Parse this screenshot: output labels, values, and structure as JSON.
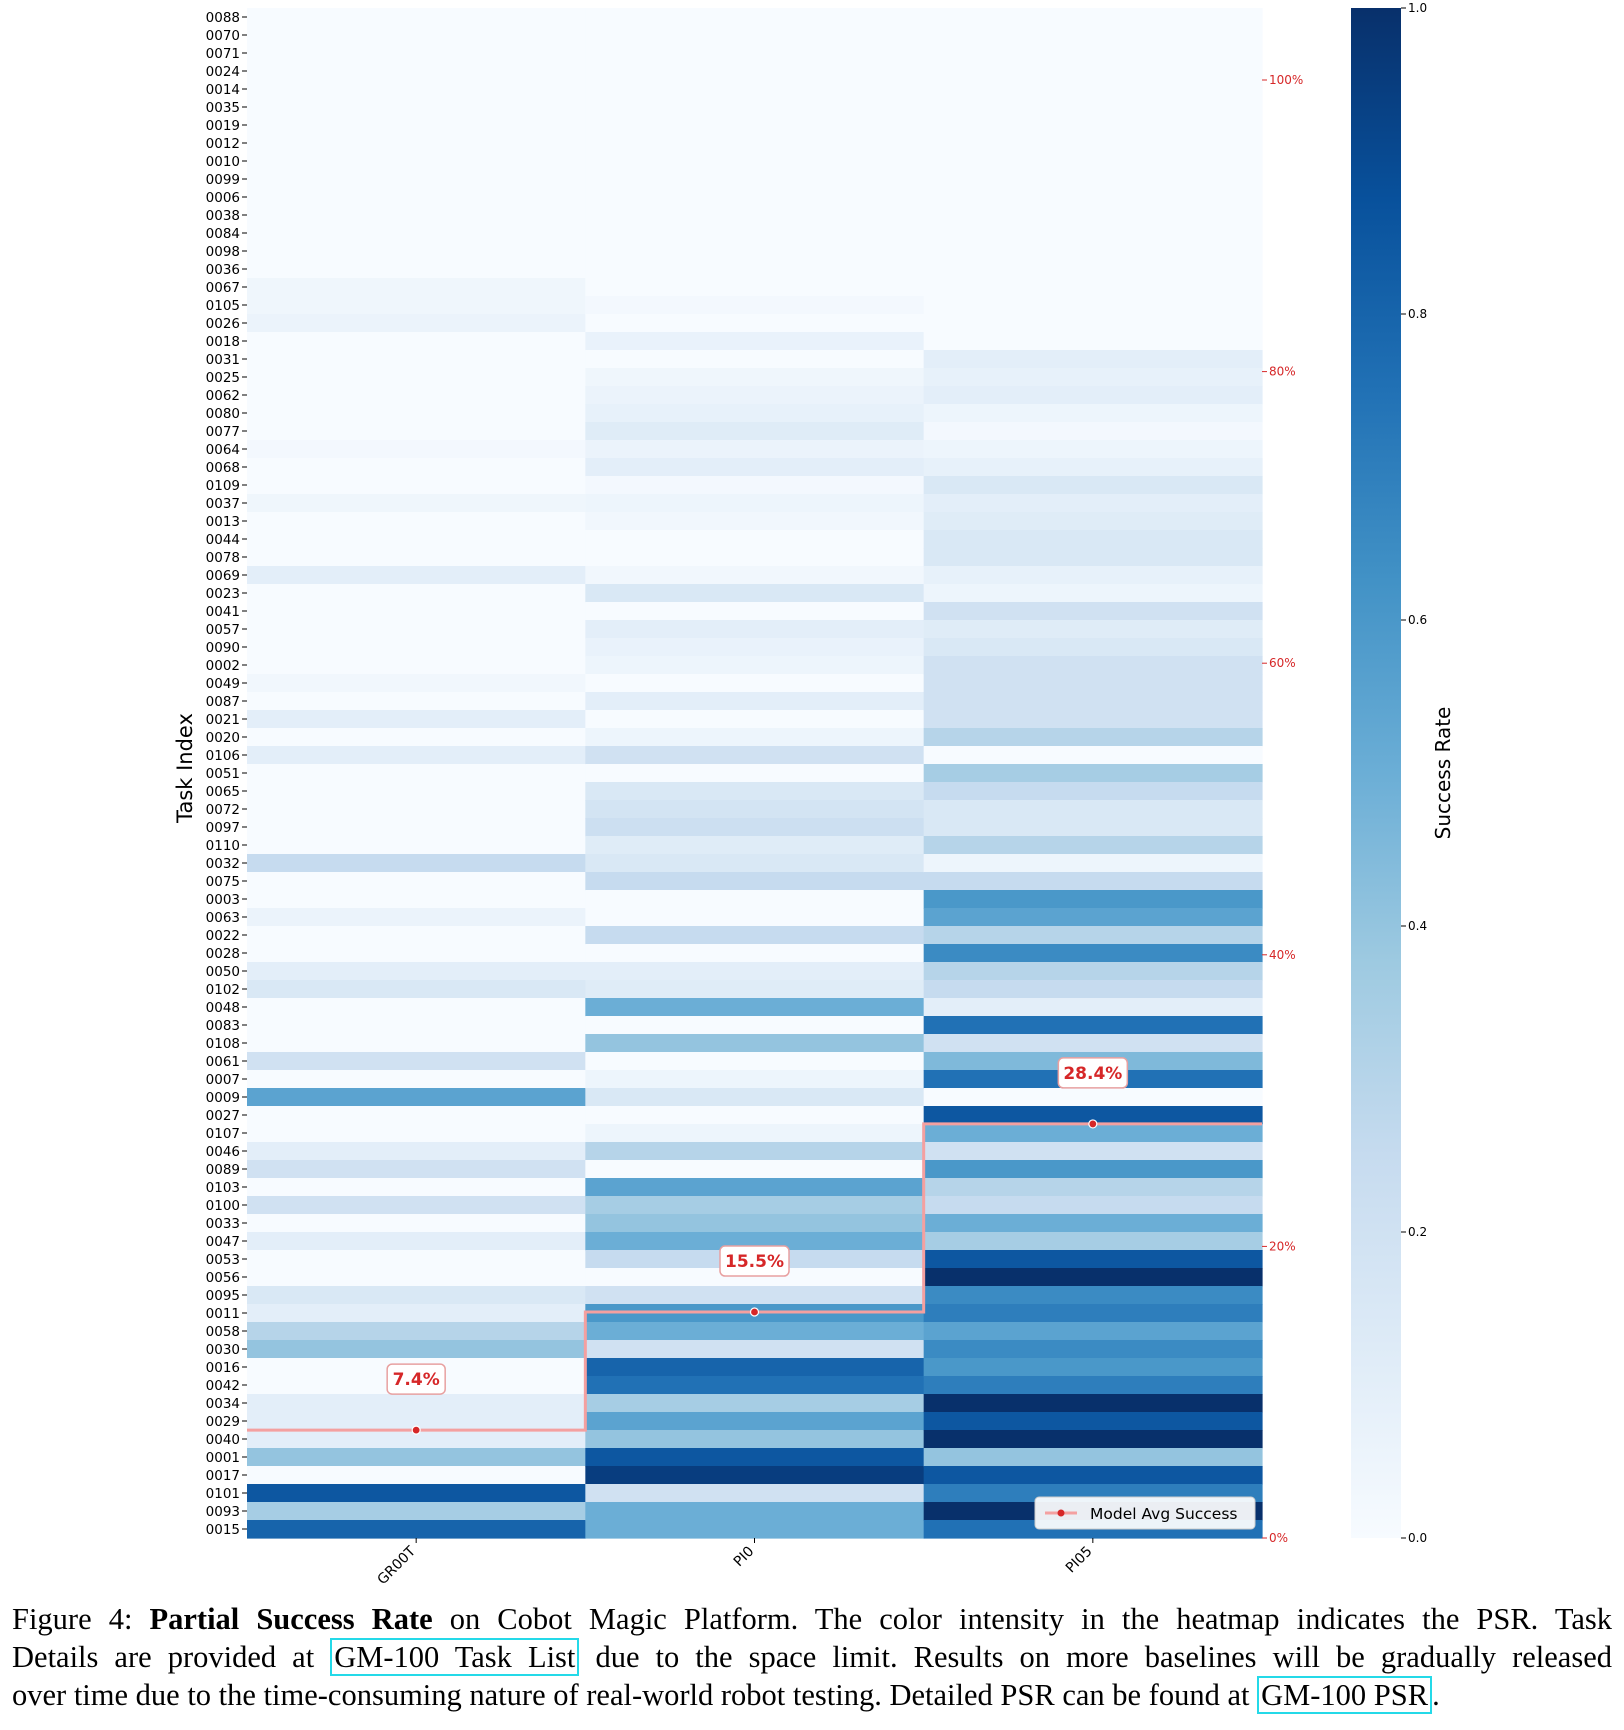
{
  "chart_data": {
    "type": "heatmap",
    "ylabel": "Task Index",
    "models": [
      "GR00T",
      "PI0",
      "PI05"
    ],
    "tasks": [
      "0088",
      "0070",
      "0071",
      "0024",
      "0014",
      "0035",
      "0019",
      "0012",
      "0010",
      "0099",
      "0006",
      "0038",
      "0084",
      "0098",
      "0036",
      "0067",
      "0105",
      "0026",
      "0018",
      "0031",
      "0025",
      "0062",
      "0080",
      "0077",
      "0064",
      "0068",
      "0109",
      "0037",
      "0013",
      "0044",
      "0078",
      "0069",
      "0023",
      "0041",
      "0057",
      "0090",
      "0002",
      "0049",
      "0087",
      "0021",
      "0020",
      "0106",
      "0051",
      "0065",
      "0072",
      "0097",
      "0110",
      "0032",
      "0075",
      "0003",
      "0063",
      "0022",
      "0028",
      "0050",
      "0102",
      "0048",
      "0083",
      "0108",
      "0061",
      "0007",
      "0009",
      "0027",
      "0107",
      "0046",
      "0089",
      "0103",
      "0100",
      "0033",
      "0047",
      "0053",
      "0056",
      "0095",
      "0011",
      "0058",
      "0030",
      "0016",
      "0042",
      "0034",
      "0029",
      "0040",
      "0001",
      "0017",
      "0101",
      "0093",
      "0015"
    ],
    "values": {
      "GR00T": [
        0,
        0,
        0,
        0,
        0,
        0,
        0,
        0,
        0,
        0,
        0,
        0,
        0,
        0,
        0,
        0.04,
        0.04,
        0.06,
        0,
        0,
        0,
        0,
        0,
        0,
        0.02,
        0,
        0,
        0.04,
        0,
        0,
        0,
        0.1,
        0,
        0,
        0,
        0,
        0,
        0.03,
        0,
        0.1,
        0,
        0.1,
        0,
        0,
        0,
        0,
        0,
        0.25,
        0,
        0,
        0.06,
        0,
        0,
        0.1,
        0.15,
        0,
        0,
        0,
        0.2,
        0,
        0.55,
        0,
        0,
        0.1,
        0.2,
        0,
        0.2,
        0,
        0.1,
        0,
        0,
        0.15,
        0.1,
        0.3,
        0.4,
        0,
        0,
        0.1,
        0.1,
        0.1,
        0.4,
        0,
        0.85,
        0.35,
        0.8
      ],
      "PI0": [
        0,
        0,
        0,
        0,
        0,
        0,
        0,
        0,
        0,
        0,
        0,
        0,
        0,
        0,
        0,
        0,
        0.02,
        0,
        0.07,
        0,
        0.04,
        0.06,
        0.08,
        0.12,
        0.06,
        0.1,
        0.02,
        0.05,
        0.03,
        0,
        0,
        0.03,
        0.15,
        0,
        0.1,
        0.07,
        0.05,
        0,
        0.1,
        0,
        0.05,
        0.2,
        0,
        0.15,
        0.18,
        0.22,
        0.12,
        0.15,
        0.25,
        0,
        0,
        0.25,
        0,
        0.1,
        0.12,
        0.5,
        0,
        0.4,
        0,
        0.05,
        0.15,
        0,
        0.05,
        0.3,
        0,
        0.55,
        0.35,
        0.4,
        0.5,
        0.25,
        0,
        0.2,
        0.6,
        0.5,
        0.2,
        0.8,
        0.75,
        0.35,
        0.55,
        0.4,
        0.85,
        0.95,
        0.2,
        0.5,
        0.5
      ],
      "PI05": [
        0,
        0,
        0,
        0,
        0,
        0,
        0,
        0,
        0,
        0,
        0,
        0,
        0,
        0,
        0,
        0,
        0,
        0,
        0,
        0.1,
        0.08,
        0.1,
        0.05,
        0.02,
        0.05,
        0.08,
        0.15,
        0.1,
        0.12,
        0.15,
        0.15,
        0.08,
        0.05,
        0.2,
        0.12,
        0.15,
        0.2,
        0.2,
        0.2,
        0.2,
        0.3,
        0,
        0.35,
        0.25,
        0.15,
        0.15,
        0.3,
        0.05,
        0.25,
        0.6,
        0.55,
        0.3,
        0.65,
        0.3,
        0.25,
        0.1,
        0.75,
        0.2,
        0.45,
        0.75,
        0,
        0.85,
        0.5,
        0.2,
        0.6,
        0.3,
        0.25,
        0.5,
        0.35,
        0.85,
        1.0,
        0.65,
        0.7,
        0.55,
        0.65,
        0.6,
        0.7,
        1.0,
        0.85,
        1.0,
        0.4,
        0.85,
        0.7,
        1.0,
        0.75
      ]
    },
    "avg_success": [
      {
        "model": "GR00T",
        "value": 7.4,
        "label": "7.4%"
      },
      {
        "model": "PI0",
        "value": 15.5,
        "label": "15.5%"
      },
      {
        "model": "PI05",
        "value": 28.4,
        "label": "28.4%"
      }
    ],
    "right_axis": {
      "ticks": [
        "100%",
        "80%",
        "60%",
        "40%",
        "20%",
        "0%"
      ],
      "values": [
        100,
        80,
        60,
        40,
        20,
        0
      ],
      "color": "#d62728"
    },
    "colorbar": {
      "label": "Success Rate",
      "ticks": [
        "1.0",
        "0.8",
        "0.6",
        "0.4",
        "0.2",
        "0.0"
      ],
      "values": [
        1.0,
        0.8,
        0.6,
        0.4,
        0.2,
        0.0
      ],
      "colormap": "Blues"
    },
    "legend": {
      "label": "Model Avg Success",
      "placement": "bottom-right"
    },
    "line_color": "#f4a0a0"
  },
  "caption": {
    "prefix": "Figure 4: ",
    "bold": "Partial Success Rate",
    "line1_rest": " on Cobot Magic Platform. The color intensity in the heatmap indicates the PSR. Task",
    "line2_a": "Details are provided at ",
    "link1": "GM-100 Task List",
    "line2_b": " due to the space limit. Results on more baselines will be gradually released",
    "line3_a": "over time due to the time-consuming nature of real-world robot testing. Detailed PSR can be found at ",
    "link2": "GM-100 PSR",
    "line3_b": "."
  }
}
